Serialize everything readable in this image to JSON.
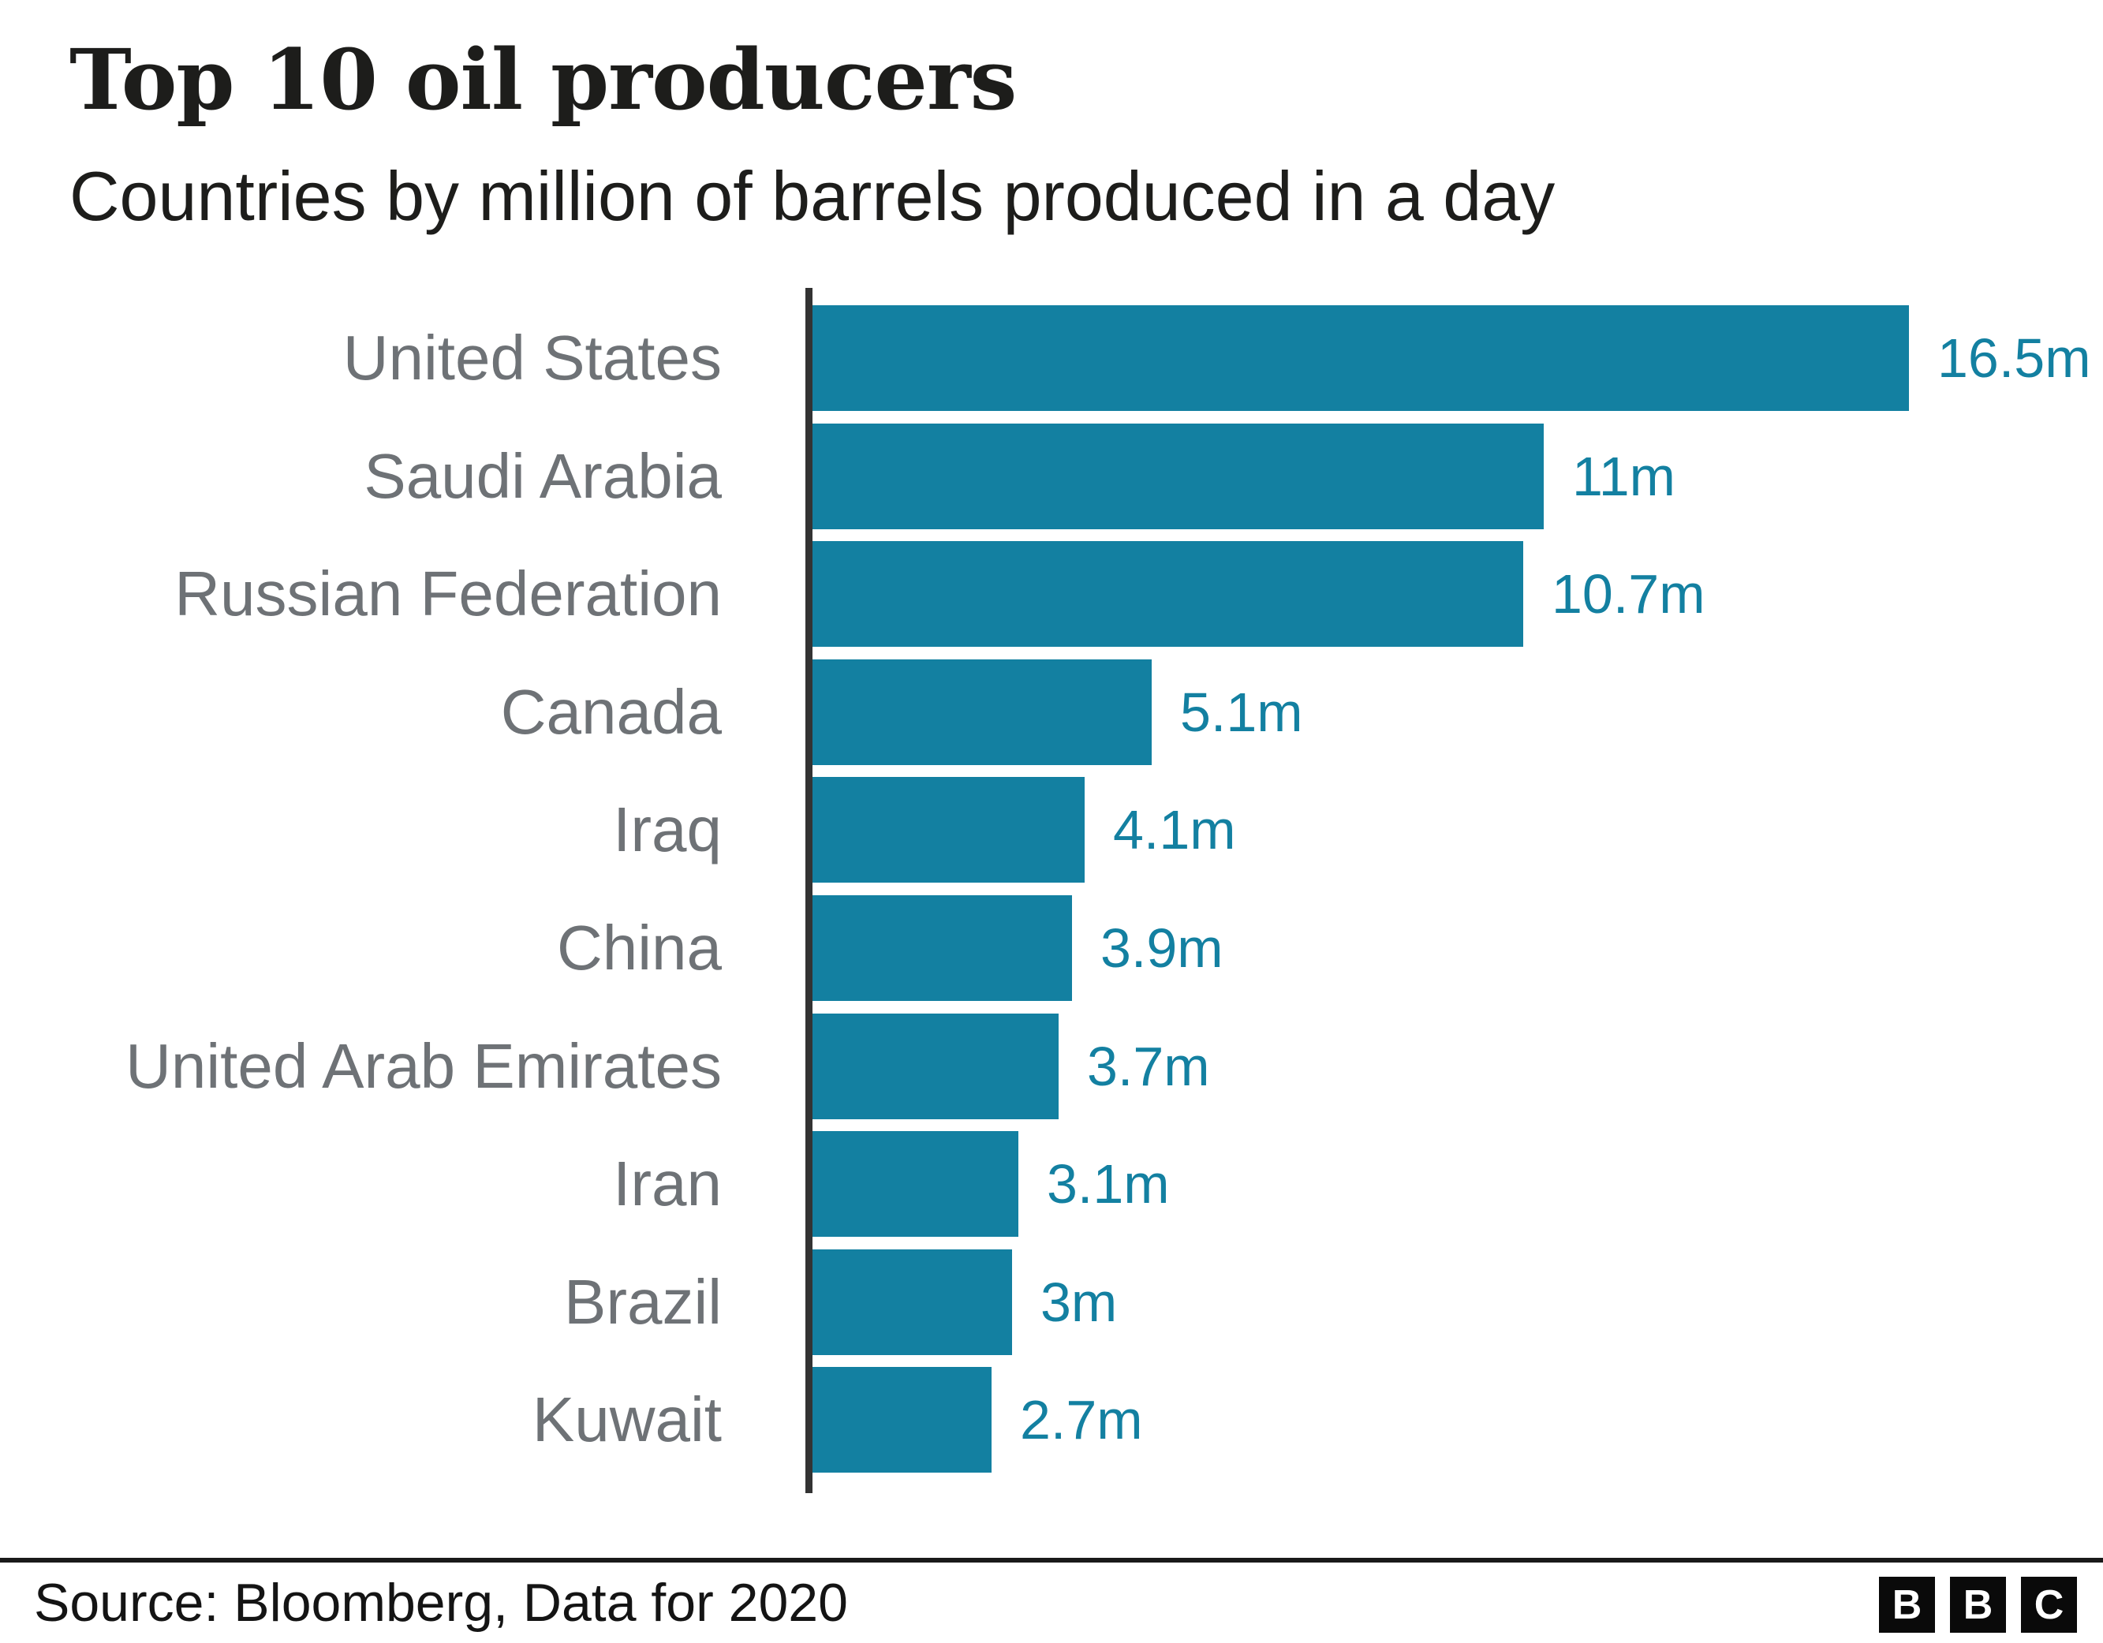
{
  "header": {
    "title": "Top 10 oil producers",
    "subtitle": "Countries by million of barrels produced in a day"
  },
  "chart_data": {
    "type": "bar",
    "orientation": "horizontal",
    "title": "Top 10 oil producers",
    "subtitle": "Countries by million of barrels produced in a day",
    "unit": "million barrels per day",
    "categories": [
      "United States",
      "Saudi Arabia",
      "Russian Federation",
      "Canada",
      "Iraq",
      "China",
      "United Arab Emirates",
      "Iran",
      "Brazil",
      "Kuwait"
    ],
    "values": [
      16.5,
      11,
      10.7,
      5.1,
      4.1,
      3.9,
      3.7,
      3.1,
      3,
      2.7
    ],
    "value_labels": [
      "16.5m",
      "11m",
      "10.7m",
      "5.1m",
      "4.1m",
      "3.9m",
      "3.7m",
      "3.1m",
      "3m",
      "2.7m"
    ],
    "xlabel": "",
    "ylabel": "",
    "xlim": [
      0,
      16.5
    ],
    "grid": false,
    "legend": false,
    "bar_color": "#1380A1",
    "value_label_color": "#1380A1",
    "category_label_color": "#6e7276",
    "axis_color": "#333333"
  },
  "footer": {
    "source": "Source: Bloomberg, Data for 2020",
    "logo_letters": [
      "B",
      "B",
      "C"
    ]
  }
}
